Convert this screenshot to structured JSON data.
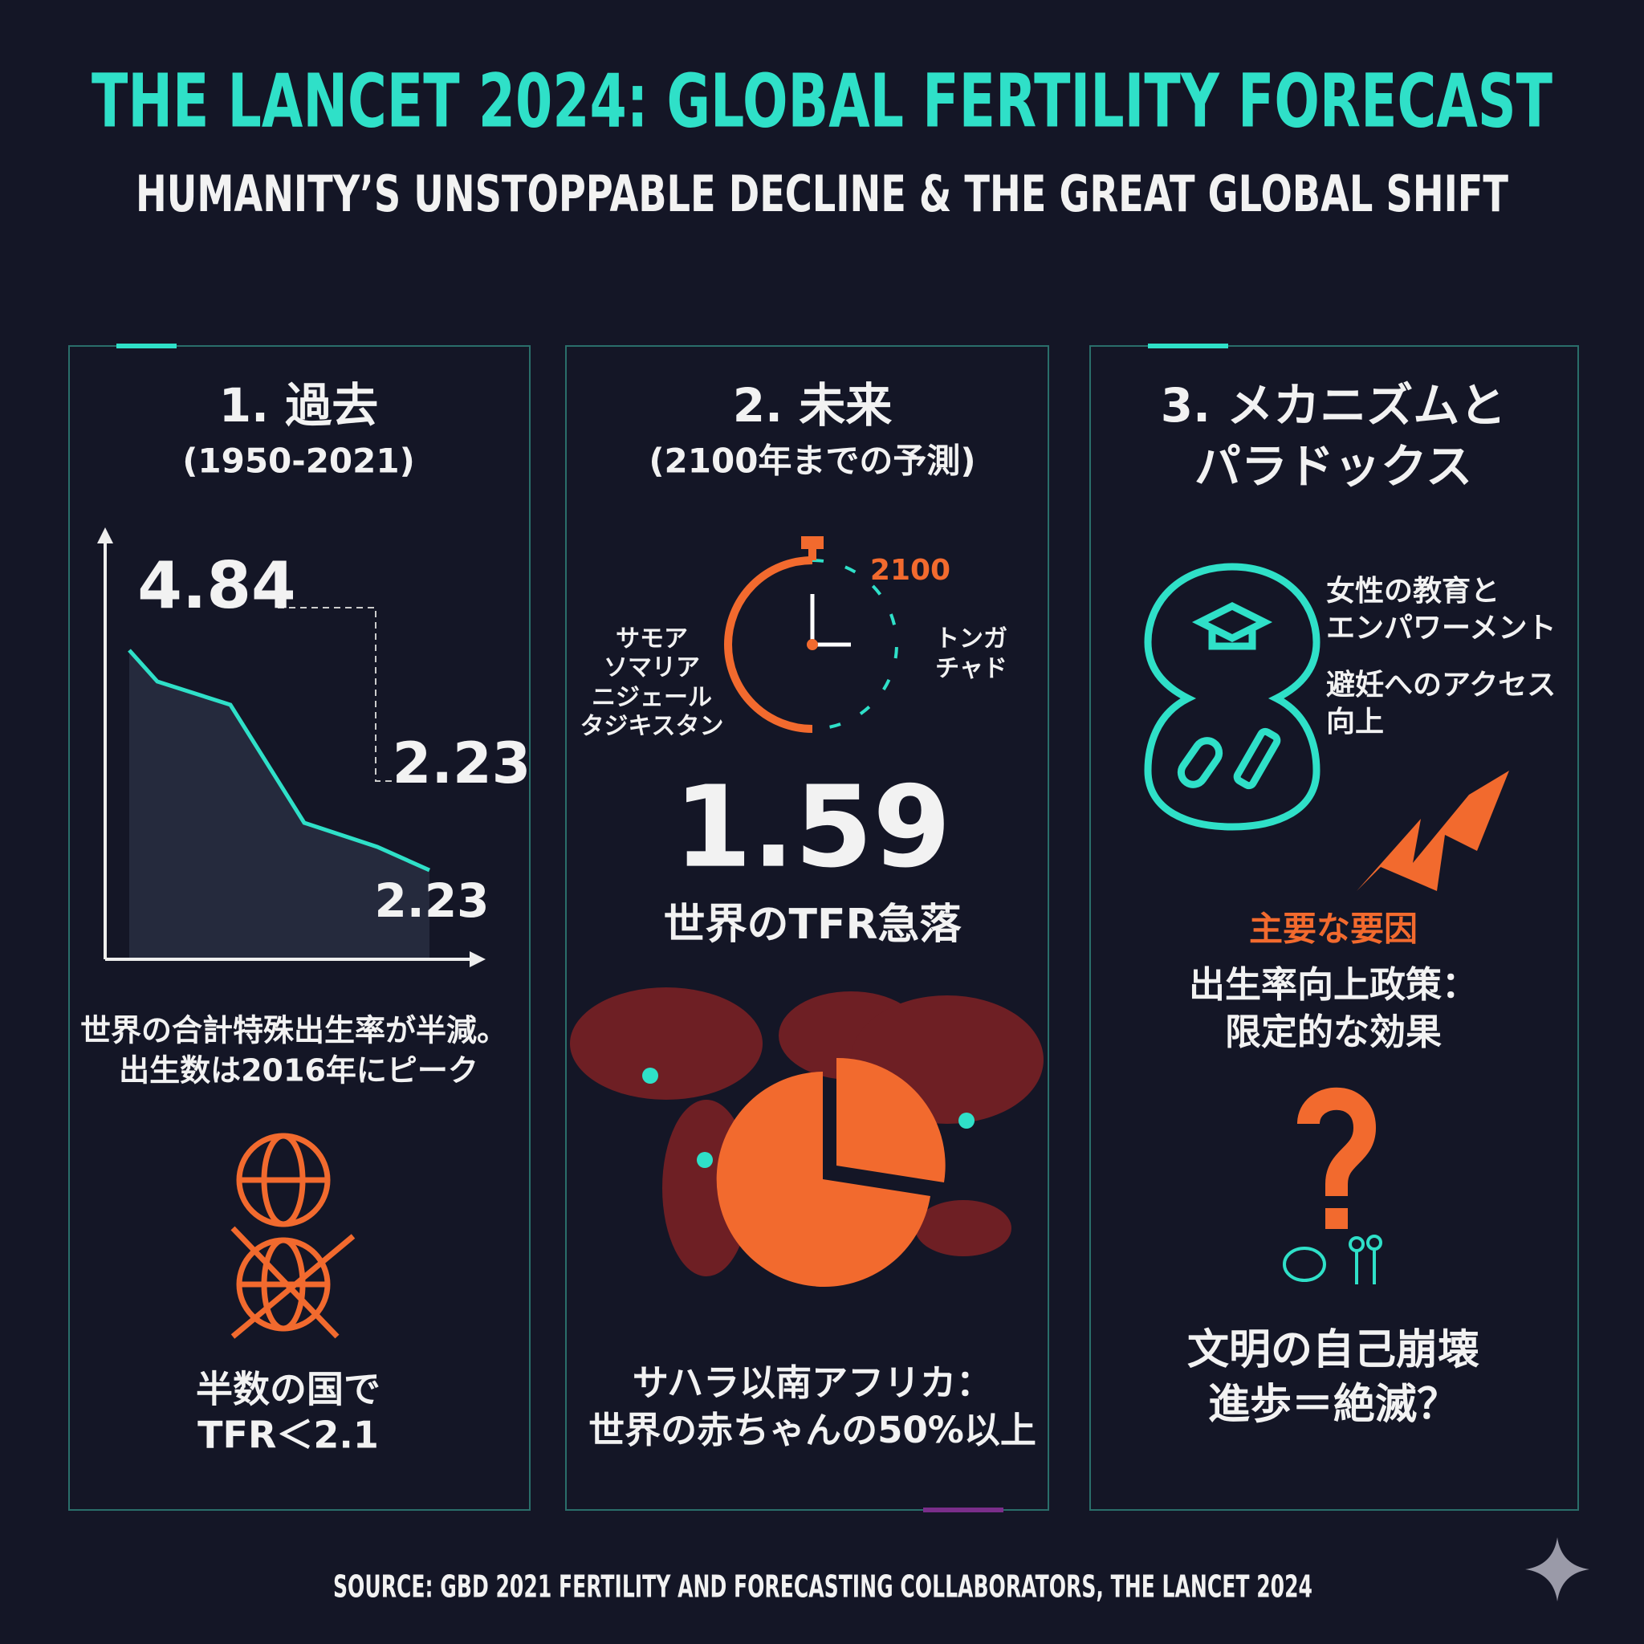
{
  "header": {
    "title": "THE LANCET 2024: GLOBAL FERTILITY FORECAST",
    "subtitle": "HUMANITY’S UNSTOPPABLE DECLINE & THE GREAT GLOBAL SHIFT"
  },
  "panels": [
    {
      "title": "1. 過去",
      "subtitle": "(1950-2021)",
      "chart_labels": [
        "4.84",
        "2.23",
        "2.23"
      ],
      "caption": [
        "世界の合計特殊出生率が半減。",
        "出生数は2016年にピーク"
      ],
      "footer": [
        "半数の国で",
        "TFR＜2.1"
      ]
    },
    {
      "title": "2. 未来",
      "subtitle": "(2100年までの予測)",
      "clock_label": "2100",
      "left_countries": [
        "サモア",
        "ソマリア",
        "ニジェール",
        "タジキスタン"
      ],
      "right_countries": [
        "トンガ",
        "チャド"
      ],
      "big_number": "1.59",
      "big_caption": "世界のTFR急落",
      "footer": [
        "サハラ以南アフリカ：",
        "世界の赤ちゃんの50%以上"
      ]
    },
    {
      "title": [
        "3. メカニズムと",
        "パラドックス"
      ],
      "factors": [
        "女性の教育と",
        "エンパワーメント",
        "避妊へのアクセス",
        "向上"
      ],
      "heading": "主要な要因",
      "policy": [
        "出生率向上政策：",
        "限定的な効果"
      ],
      "footer": [
        "文明の自己崩壊",
        "進歩＝絶滅？"
      ]
    }
  ],
  "source": "SOURCE: GBD 2021 FERTILITY AND FORECASTING COLLABORATORS, THE LANCET 2024"
}
